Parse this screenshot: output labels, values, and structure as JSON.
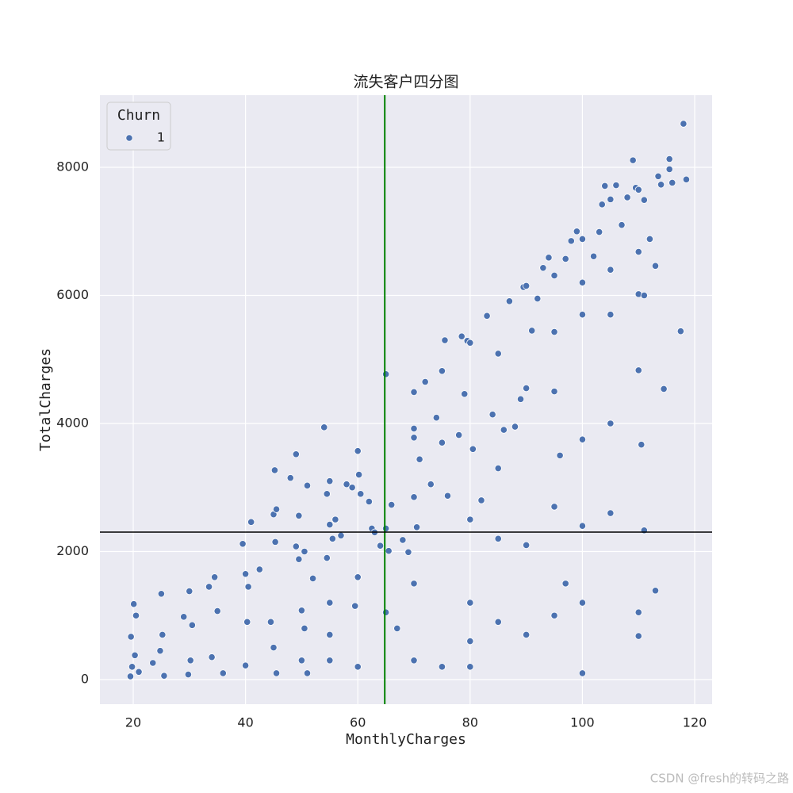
{
  "chart_data": {
    "type": "scatter",
    "title": "流失客户四分图",
    "x_label": "MonthlyCharges",
    "y_label": "TotalCharges",
    "legend_title": "Churn",
    "legend_position": "upper left",
    "grid": true,
    "xlim": [
      14.07,
      123.1
    ],
    "ylim": [
      -384,
      9127
    ],
    "xticks": [
      20,
      40,
      60,
      80,
      100,
      120
    ],
    "yticks": [
      0,
      2000,
      4000,
      6000,
      8000
    ],
    "vline": {
      "value": 64.8,
      "color": "#008000"
    },
    "hline": {
      "value": 2303,
      "color": "#000000"
    },
    "x": [
      19.5,
      19.8,
      20.1,
      20.5,
      19.6,
      20.3,
      21,
      25,
      25.2,
      24.8,
      25.5,
      23.5,
      29,
      30,
      30.5,
      30.2,
      29.8,
      33.5,
      34.5,
      35,
      34,
      36,
      39.5,
      40,
      40.5,
      41,
      40.3,
      40,
      42.5,
      45,
      45.2,
      45.5,
      45.3,
      44.5,
      45,
      45.5,
      48,
      49,
      49.5,
      49,
      49.5,
      50,
      50.5,
      50,
      51,
      50.5,
      52,
      51,
      54,
      54.5,
      55,
      55,
      55.5,
      54.5,
      55,
      55,
      55,
      56,
      57,
      58,
      59,
      60,
      60.2,
      60.5,
      60,
      59.5,
      60,
      62,
      62.5,
      63,
      64,
      65,
      65,
      65,
      65.5,
      66,
      67,
      68,
      69,
      70,
      70,
      70,
      70,
      70.5,
      70,
      71,
      72,
      73,
      74,
      75,
      75.5,
      75,
      76,
      78,
      78.5,
      79,
      79.5,
      80,
      80.5,
      80,
      80,
      80,
      80,
      82,
      83,
      84,
      85,
      85,
      86,
      87,
      88,
      89,
      89.5,
      90,
      90,
      91,
      92,
      93,
      94,
      95,
      95,
      95,
      96,
      97,
      98,
      99,
      100,
      100,
      100,
      100,
      100,
      100,
      100,
      102,
      103,
      103.5,
      104,
      105,
      105,
      105,
      105,
      106,
      107,
      108,
      109,
      109.5,
      110,
      110,
      110,
      110,
      110.5,
      110,
      110,
      111,
      111,
      111,
      112,
      113,
      113,
      113.5,
      114,
      114.5,
      115.5,
      115.5,
      116,
      117.5,
      118,
      118.5,
      85,
      90,
      95,
      75,
      70,
      85,
      90,
      95,
      105,
      97
    ],
    "series": [
      {
        "name": "1",
        "color": "#4c72b0",
        "values": [
          50,
          200,
          1180,
          1000,
          670,
          380,
          120,
          1340,
          700,
          450,
          60,
          260,
          980,
          1380,
          850,
          300,
          80,
          1450,
          1600,
          1070,
          350,
          100,
          2120,
          1650,
          1450,
          2460,
          900,
          220,
          1720,
          2580,
          3270,
          2660,
          2150,
          900,
          500,
          100,
          3150,
          3520,
          2560,
          2080,
          1880,
          1080,
          800,
          300,
          3030,
          2000,
          1580,
          100,
          3940,
          2900,
          3100,
          2420,
          2200,
          1900,
          1200,
          700,
          300,
          2500,
          2250,
          3050,
          3000,
          3570,
          3200,
          2900,
          1600,
          1150,
          200,
          2780,
          2360,
          2300,
          2090,
          4770,
          2360,
          1050,
          2010,
          2730,
          800,
          2180,
          1990,
          3920,
          3780,
          2850,
          4490,
          2380,
          1500,
          3440,
          4650,
          3050,
          4090,
          4820,
          5300,
          3700,
          2870,
          3820,
          5360,
          4460,
          5290,
          5260,
          3600,
          2500,
          1200,
          600,
          200,
          2800,
          5680,
          4140,
          5090,
          3300,
          3900,
          5910,
          3950,
          4380,
          6130,
          6150,
          4550,
          5450,
          5950,
          6430,
          6590,
          6310,
          5430,
          4500,
          3500,
          6570,
          6850,
          7000,
          6880,
          6200,
          5700,
          3750,
          2400,
          1200,
          100,
          6610,
          6990,
          7420,
          7710,
          7500,
          6400,
          5700,
          4000,
          7720,
          7100,
          7530,
          8110,
          7680,
          7650,
          6680,
          6020,
          4830,
          3670,
          1050,
          680,
          7490,
          6000,
          2330,
          6880,
          6460,
          1390,
          7860,
          7730,
          4540,
          8130,
          7970,
          7760,
          5440,
          8680,
          7810,
          900,
          700,
          1000,
          200,
          300,
          2200,
          2100,
          2700,
          2600,
          1500
        ]
      }
    ]
  },
  "watermark": "CSDN @fresh的转码之路"
}
